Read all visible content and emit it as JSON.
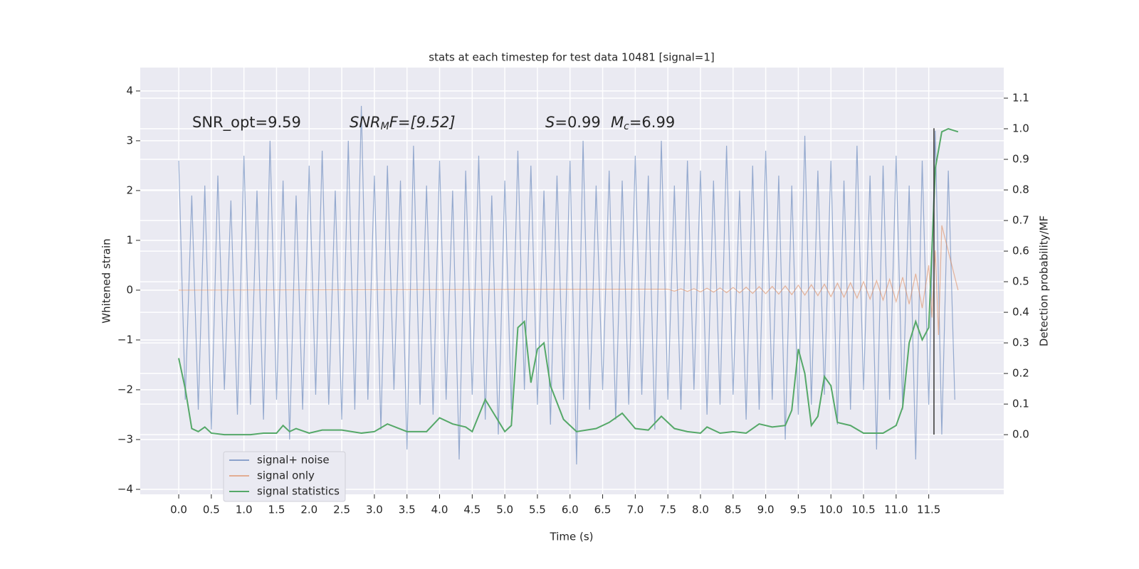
{
  "chart_data": {
    "type": "line",
    "title": "stats at each timestep for test data 10481 [signal=1]",
    "x_label": "Time (s)",
    "y_label": "Whitened strain",
    "y2_label": "Detection probability/MF",
    "xlim": [
      -0.59,
      12.65
    ],
    "ylim": [
      -4.1,
      4.47
    ],
    "y2lim": [
      -0.195,
      1.2
    ],
    "xticks": [
      {
        "value": 0,
        "label": "0.0"
      },
      {
        "value": 0.5,
        "label": "0.5"
      },
      {
        "value": 1,
        "label": "1.0"
      },
      {
        "value": 1.5,
        "label": "1.5"
      },
      {
        "value": 2,
        "label": "2.0"
      },
      {
        "value": 2.5,
        "label": "2.5"
      },
      {
        "value": 3,
        "label": "3.0"
      },
      {
        "value": 3.5,
        "label": "3.5"
      },
      {
        "value": 4,
        "label": "4.0"
      },
      {
        "value": 4.5,
        "label": "4.5"
      },
      {
        "value": 5,
        "label": "5.0"
      },
      {
        "value": 5.5,
        "label": "5.5"
      },
      {
        "value": 6,
        "label": "6.0"
      },
      {
        "value": 6.5,
        "label": "6.5"
      },
      {
        "value": 7,
        "label": "7.0"
      },
      {
        "value": 7.5,
        "label": "7.5"
      },
      {
        "value": 8,
        "label": "8.0"
      },
      {
        "value": 8.5,
        "label": "8.5"
      },
      {
        "value": 9,
        "label": "9.0"
      },
      {
        "value": 9.5,
        "label": "9.5"
      },
      {
        "value": 10,
        "label": "10.0"
      },
      {
        "value": 10.5,
        "label": "10.5"
      },
      {
        "value": 11,
        "label": "11.0"
      },
      {
        "value": 11.5,
        "label": "11.5"
      }
    ],
    "yticks": [
      {
        "value": -4,
        "label": "−4"
      },
      {
        "value": -3,
        "label": "−3"
      },
      {
        "value": -2,
        "label": "−2"
      },
      {
        "value": -1,
        "label": "−1"
      },
      0,
      1,
      2,
      3,
      4
    ],
    "y2ticks": [
      {
        "value": 0,
        "label": "0.0"
      },
      0.1,
      0.2,
      0.3,
      0.4,
      0.5,
      0.6,
      0.7,
      0.8,
      0.9,
      {
        "value": 1,
        "label": "1.0"
      },
      1.1
    ],
    "grid": true,
    "legend": "lower left",
    "annotations": [
      {
        "text": "SNR_opt=9.59"
      },
      {
        "text": "SNR",
        "sub": "M",
        "tail": "F=[9.52]"
      },
      {
        "text": "S",
        "tail": "=0.99"
      },
      {
        "text": "M",
        "sub": "c",
        "tail": "=6.99"
      }
    ],
    "vline": {
      "x": 11.58,
      "ymin": -2.9,
      "ymax": 3.25,
      "color": "#333333"
    },
    "series": [
      {
        "name": "signal+ noise",
        "color": "#4c72b0",
        "x": [
          0.0,
          0.1,
          0.2,
          0.3,
          0.4,
          0.5,
          0.6,
          0.7,
          0.8,
          0.9,
          1.0,
          1.1,
          1.2,
          1.3,
          1.4,
          1.5,
          1.6,
          1.7,
          1.8,
          1.9,
          2.0,
          2.1,
          2.2,
          2.3,
          2.4,
          2.5,
          2.6,
          2.7,
          2.8,
          2.9,
          3.0,
          3.1,
          3.2,
          3.3,
          3.4,
          3.5,
          3.6,
          3.7,
          3.8,
          3.9,
          4.0,
          4.1,
          4.2,
          4.3,
          4.4,
          4.5,
          4.6,
          4.7,
          4.8,
          4.9,
          5.0,
          5.1,
          5.2,
          5.3,
          5.4,
          5.5,
          5.6,
          5.7,
          5.8,
          5.9,
          6.0,
          6.1,
          6.2,
          6.3,
          6.4,
          6.5,
          6.6,
          6.7,
          6.8,
          6.9,
          7.0,
          7.1,
          7.2,
          7.3,
          7.4,
          7.5,
          7.6,
          7.7,
          7.8,
          7.9,
          8.0,
          8.1,
          8.2,
          8.3,
          8.4,
          8.5,
          8.6,
          8.7,
          8.8,
          8.9,
          9.0,
          9.1,
          9.2,
          9.3,
          9.4,
          9.5,
          9.6,
          9.7,
          9.8,
          9.9,
          10.0,
          10.1,
          10.2,
          10.3,
          10.4,
          10.5,
          10.6,
          10.7,
          10.8,
          10.9,
          11.0,
          11.1,
          11.2,
          11.3,
          11.4,
          11.5,
          11.6,
          11.7,
          11.8,
          11.9
        ],
        "values": [
          2.6,
          -2.2,
          1.9,
          -2.4,
          2.1,
          -2.8,
          2.3,
          -2.0,
          1.8,
          -2.5,
          2.7,
          -2.3,
          2.0,
          -2.6,
          3.0,
          -2.2,
          2.2,
          -3.0,
          1.9,
          -2.4,
          2.5,
          -2.1,
          2.8,
          -2.3,
          2.0,
          -2.6,
          3.0,
          -2.4,
          3.7,
          -2.2,
          2.3,
          -2.8,
          2.5,
          -2.0,
          2.2,
          -3.2,
          2.9,
          -2.3,
          2.1,
          -2.5,
          2.6,
          -2.2,
          2.0,
          -3.4,
          2.4,
          -2.1,
          2.7,
          -2.6,
          1.9,
          -2.9,
          2.2,
          -2.4,
          2.8,
          -2.0,
          2.5,
          -2.3,
          2.0,
          -2.7,
          2.3,
          -2.2,
          2.6,
          -3.5,
          3.0,
          -2.4,
          2.1,
          -2.0,
          2.4,
          -2.6,
          2.2,
          -2.3,
          2.7,
          -2.1,
          2.3,
          -2.8,
          3.0,
          -2.2,
          2.1,
          -2.4,
          2.6,
          -2.0,
          2.4,
          -2.5,
          2.2,
          -2.3,
          2.9,
          -2.1,
          2.0,
          -2.6,
          2.5,
          -2.4,
          2.8,
          -2.2,
          2.3,
          -3.0,
          2.1,
          -2.5,
          3.1,
          -2.3,
          2.4,
          -2.1,
          2.6,
          -2.7,
          2.2,
          -2.4,
          2.9,
          -2.0,
          2.3,
          -3.2,
          2.5,
          -2.2,
          2.7,
          -2.4,
          2.1,
          -3.4,
          2.6,
          -2.3,
          3.2,
          -2.9,
          2.4,
          -2.2
        ]
      },
      {
        "name": "signal only",
        "color": "#dd8452",
        "x": [
          0.0,
          7.5,
          7.6,
          7.7,
          7.8,
          7.9,
          8.0,
          8.1,
          8.2,
          8.3,
          8.4,
          8.5,
          8.6,
          8.7,
          8.8,
          8.9,
          9.0,
          9.1,
          9.2,
          9.3,
          9.4,
          9.5,
          9.6,
          9.7,
          9.8,
          9.9,
          10.0,
          10.1,
          10.2,
          10.3,
          10.4,
          10.5,
          10.6,
          10.7,
          10.8,
          10.9,
          11.0,
          11.1,
          11.2,
          11.3,
          11.4,
          11.5,
          11.55,
          11.6,
          11.65,
          11.7,
          11.95
        ],
        "values": [
          0,
          0.02,
          -0.02,
          0.025,
          -0.025,
          0.03,
          -0.035,
          0.04,
          -0.04,
          0.045,
          -0.05,
          0.055,
          -0.055,
          0.06,
          -0.065,
          0.07,
          -0.07,
          0.075,
          -0.08,
          0.085,
          -0.09,
          0.1,
          -0.1,
          0.11,
          -0.11,
          0.12,
          -0.13,
          0.14,
          -0.14,
          0.15,
          -0.16,
          0.17,
          -0.18,
          0.19,
          -0.2,
          0.22,
          -0.23,
          0.26,
          -0.28,
          0.33,
          -0.36,
          0.5,
          -0.55,
          0.8,
          -0.9,
          1.3,
          0
        ]
      },
      {
        "name": "signal statistics",
        "color": "#55a868",
        "axis": "y2",
        "x": [
          0.0,
          0.1,
          0.2,
          0.3,
          0.4,
          0.5,
          0.7,
          0.9,
          1.1,
          1.3,
          1.5,
          1.6,
          1.7,
          1.8,
          2.0,
          2.2,
          2.5,
          2.8,
          3.0,
          3.2,
          3.5,
          3.8,
          4.0,
          4.2,
          4.4,
          4.5,
          4.7,
          4.8,
          5.0,
          5.1,
          5.2,
          5.3,
          5.4,
          5.5,
          5.6,
          5.7,
          5.9,
          6.1,
          6.4,
          6.6,
          6.8,
          7.0,
          7.2,
          7.4,
          7.6,
          7.8,
          8.0,
          8.1,
          8.3,
          8.5,
          8.7,
          8.9,
          9.1,
          9.3,
          9.4,
          9.5,
          9.6,
          9.7,
          9.8,
          9.9,
          10.0,
          10.1,
          10.3,
          10.5,
          10.8,
          11.0,
          11.1,
          11.2,
          11.3,
          11.35,
          11.4,
          11.5,
          11.6,
          11.7,
          11.8,
          11.95
        ],
        "values": [
          0.25,
          0.15,
          0.02,
          0.01,
          0.025,
          0.005,
          0.0,
          0.0,
          0.0,
          0.005,
          0.005,
          0.03,
          0.01,
          0.02,
          0.005,
          0.015,
          0.015,
          0.005,
          0.01,
          0.035,
          0.01,
          0.01,
          0.055,
          0.035,
          0.025,
          0.01,
          0.115,
          0.08,
          0.01,
          0.03,
          0.35,
          0.37,
          0.17,
          0.28,
          0.3,
          0.16,
          0.05,
          0.01,
          0.02,
          0.04,
          0.07,
          0.02,
          0.015,
          0.06,
          0.02,
          0.01,
          0.005,
          0.025,
          0.005,
          0.01,
          0.005,
          0.035,
          0.025,
          0.03,
          0.08,
          0.28,
          0.2,
          0.03,
          0.06,
          0.19,
          0.16,
          0.04,
          0.03,
          0.005,
          0.005,
          0.03,
          0.09,
          0.3,
          0.37,
          0.34,
          0.31,
          0.35,
          0.87,
          0.99,
          1.0,
          0.99
        ]
      }
    ]
  }
}
